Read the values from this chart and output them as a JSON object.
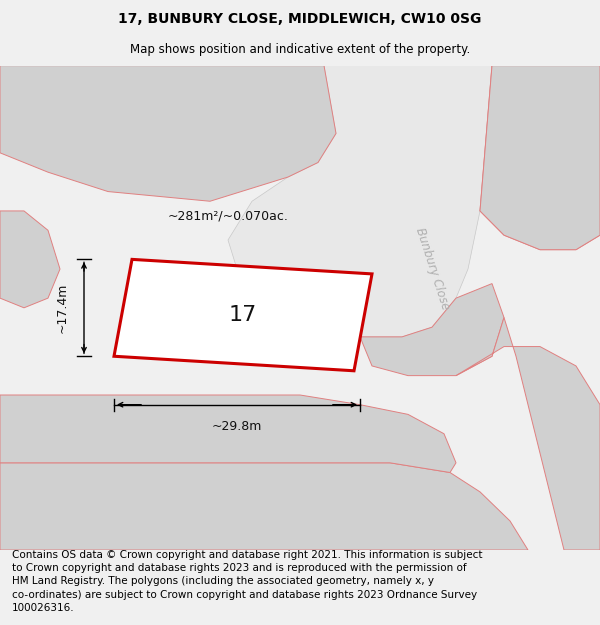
{
  "title": "17, BUNBURY CLOSE, MIDDLEWICH, CW10 0SG",
  "subtitle": "Map shows position and indicative extent of the property.",
  "footer": "Contains OS data © Crown copyright and database right 2021. This information is subject\nto Crown copyright and database rights 2023 and is reproduced with the permission of\nHM Land Registry. The polygons (including the associated geometry, namely x, y\nco-ordinates) are subject to Crown copyright and database rights 2023 Ordnance Survey\n100026316.",
  "area_label": "~281m²/~0.070ac.",
  "width_label": "~29.8m",
  "height_label": "~17.4m",
  "plot_number": "17",
  "title_fontsize": 10,
  "subtitle_fontsize": 8.5,
  "footer_fontsize": 7.5,
  "annotation_fontsize": 9,
  "plot_label_fontsize": 16,
  "road_label_fontsize": 8.5,
  "plot_edge": "#cc0000",
  "block_fill": "#d0d0d0",
  "block_edge": "#e08080",
  "road_fill": "#e0e0e0",
  "street_fill": "#c8c8c8",
  "bg_color": "#f0f0f0"
}
